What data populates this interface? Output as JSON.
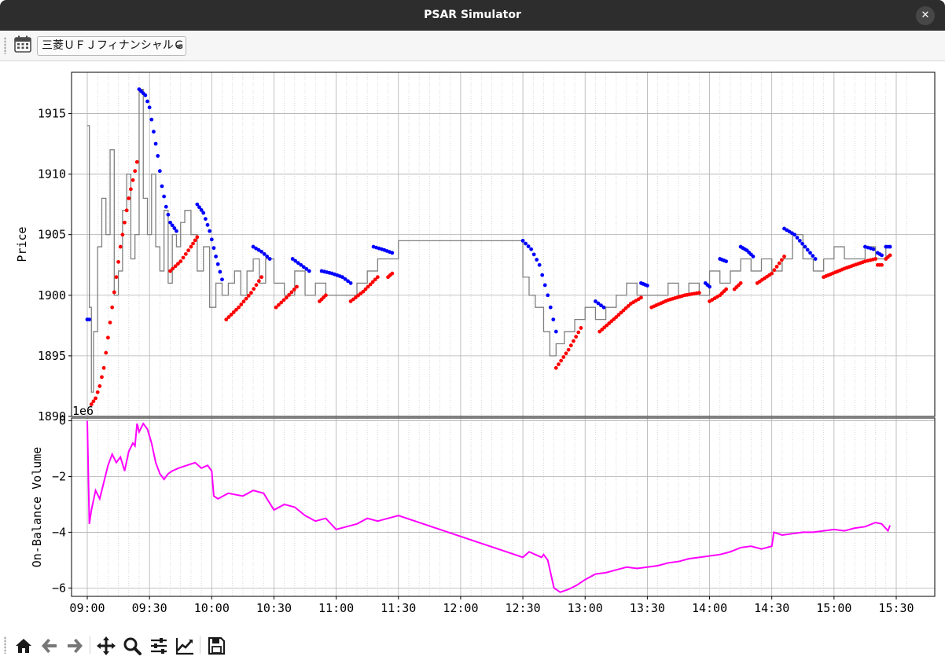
{
  "window": {
    "title": "PSAR Simulator",
    "close_glyph": "✕"
  },
  "toolbar": {
    "calendar_icon": "calendar-icon",
    "symbol_selected": "三菱ＵＦＪフィナンシャルＧ"
  },
  "navigation_toolbar": {
    "icons": [
      "home-icon",
      "back-icon",
      "forward-icon",
      "pan-icon",
      "zoom-icon",
      "configure-subplots-icon",
      "edit-axis-icon",
      "save-icon"
    ]
  },
  "colors": {
    "price_line": "#808080",
    "psar_bull": "#ff0000",
    "psar_bear": "#0000ff",
    "obv_line": "#ff00ff"
  },
  "chart_data": [
    {
      "type": "line",
      "ylabel": "Price",
      "xlabel": "",
      "ylim": [
        1890,
        1918.4
      ],
      "yticks": [
        1890,
        1895,
        1900,
        1905,
        1910,
        1915
      ],
      "xticks": [
        "09:00",
        "09:30",
        "10:00",
        "10:30",
        "11:00",
        "11:30",
        "12:00",
        "12:30",
        "13:00",
        "13:30",
        "14:00",
        "14:30",
        "15:00",
        "15:30"
      ],
      "grid": true,
      "series": [
        {
          "kind": "price",
          "x": [
            "09:00",
            "09:01",
            "09:02",
            "09:03",
            "09:05",
            "09:07",
            "09:09",
            "09:11",
            "09:13",
            "09:15",
            "09:17",
            "09:19",
            "09:21",
            "09:23",
            "09:25",
            "09:27",
            "09:29",
            "09:31",
            "09:33",
            "09:35",
            "09:37",
            "09:39",
            "09:41",
            "09:43",
            "09:45",
            "09:47",
            "09:50",
            "09:53",
            "09:56",
            "09:59",
            "10:02",
            "10:05",
            "10:08",
            "10:11",
            "10:14",
            "10:17",
            "10:20",
            "10:23",
            "10:26",
            "10:30",
            "10:35",
            "10:40",
            "10:45",
            "10:50",
            "10:55",
            "11:00",
            "11:05",
            "11:10",
            "11:15",
            "11:20",
            "11:25",
            "11:30",
            "12:30",
            "12:33",
            "12:36",
            "12:40",
            "12:43",
            "12:46",
            "12:50",
            "12:55",
            "13:00",
            "13:05",
            "13:10",
            "13:15",
            "13:20",
            "13:25",
            "13:30",
            "13:35",
            "13:40",
            "13:45",
            "13:50",
            "13:55",
            "14:00",
            "14:05",
            "14:10",
            "14:15",
            "14:20",
            "14:25",
            "14:30",
            "14:35",
            "14:40",
            "14:45",
            "14:50",
            "14:55",
            "15:00",
            "15:05",
            "15:10",
            "15:15",
            "15:20",
            "15:25"
          ],
          "y": [
            1914,
            1899,
            1892,
            1897,
            1904,
            1908,
            1905,
            1912,
            1900,
            1902,
            1907,
            1910,
            1903,
            1905,
            1917,
            1908,
            1905,
            1910,
            1904,
            1902,
            1907,
            1901,
            1905,
            1904,
            1906,
            1907,
            1905,
            1902,
            1904,
            1899,
            1901,
            1900,
            1901,
            1902,
            1900,
            1902,
            1903,
            1901,
            1903,
            1901,
            1900,
            1902,
            1900,
            1901,
            1900,
            1900,
            1900,
            1901,
            1902,
            1903,
            1903,
            1904.5,
            1901.5,
            1900,
            1899,
            1897,
            1895,
            1896,
            1897,
            1898,
            1899,
            1898,
            1899,
            1900,
            1901,
            1900,
            1900,
            1900,
            1901,
            1900,
            1901,
            1900,
            1902,
            1901,
            1902,
            1903,
            1902,
            1903,
            1902,
            1903,
            1905,
            1903,
            1902,
            1903,
            1904,
            1903,
            1903,
            1904,
            1903,
            1904
          ]
        },
        {
          "kind": "psar_long",
          "color": "red",
          "segments": [
            {
              "x": [
                "09:02",
                "09:04",
                "09:06",
                "09:08",
                "09:10",
                "09:12",
                "09:14",
                "09:16",
                "09:18",
                "09:20",
                "09:22",
                "09:24"
              ],
              "y": [
                1891,
                1891.5,
                1892.5,
                1894,
                1896.5,
                1899,
                1901.5,
                1904,
                1906,
                1908,
                1909.5,
                1911
              ]
            },
            {
              "x": [
                "09:40",
                "09:45",
                "09:50",
                "09:53"
              ],
              "y": [
                1902,
                1902.8,
                1904,
                1904.8
              ]
            },
            {
              "x": [
                "10:07",
                "10:13",
                "10:19",
                "10:24"
              ],
              "y": [
                1898,
                1899,
                1900.2,
                1901.5
              ]
            },
            {
              "x": [
                "10:31",
                "10:36",
                "10:41"
              ],
              "y": [
                1899,
                1899.8,
                1900.7
              ]
            },
            {
              "x": [
                "10:52",
                "10:55"
              ],
              "y": [
                1899.5,
                1900
              ]
            },
            {
              "x": [
                "11:07",
                "11:13",
                "11:20"
              ],
              "y": [
                1899.5,
                1900.3,
                1901.5
              ]
            },
            {
              "x": [
                "11:25",
                "11:27"
              ],
              "y": [
                1901.5,
                1901.8
              ]
            },
            {
              "x": [
                "12:46",
                "12:52",
                "12:58"
              ],
              "y": [
                1894,
                1895.5,
                1897.3
              ]
            },
            {
              "x": [
                "13:07",
                "13:15",
                "13:22",
                "13:27"
              ],
              "y": [
                1897,
                1898.2,
                1899.3,
                1899.8
              ]
            },
            {
              "x": [
                "13:32",
                "13:40",
                "13:48",
                "13:55"
              ],
              "y": [
                1899,
                1899.6,
                1900,
                1900.2
              ]
            },
            {
              "x": [
                "14:00",
                "14:05",
                "14:08"
              ],
              "y": [
                1899.5,
                1900,
                1900.5
              ]
            },
            {
              "x": [
                "14:12",
                "14:15"
              ],
              "y": [
                1900.5,
                1901
              ]
            },
            {
              "x": [
                "14:23",
                "14:30",
                "14:36"
              ],
              "y": [
                1901,
                1901.8,
                1903.2
              ]
            },
            {
              "x": [
                "14:55",
                "15:05",
                "15:15",
                "15:20"
              ],
              "y": [
                1901.5,
                1902.2,
                1902.8,
                1903
              ]
            },
            {
              "x": [
                "15:21",
                "15:23"
              ],
              "y": [
                1902.5,
                1902.5
              ]
            },
            {
              "x": [
                "15:25",
                "15:27"
              ],
              "y": [
                1903,
                1903.3
              ]
            }
          ]
        },
        {
          "kind": "psar_short",
          "color": "blue",
          "segments": [
            {
              "x": [
                "09:00",
                "09:01"
              ],
              "y": [
                1898,
                1898
              ]
            },
            {
              "x": [
                "09:25",
                "09:28",
                "09:30",
                "09:32",
                "09:34",
                "09:36",
                "09:38",
                "09:40",
                "09:43"
              ],
              "y": [
                1917,
                1916.5,
                1915.5,
                1913.5,
                1911.5,
                1909,
                1907.3,
                1906,
                1905.3
              ]
            },
            {
              "x": [
                "09:53",
                "09:56",
                "09:59",
                "10:02",
                "10:05"
              ],
              "y": [
                1907.5,
                1906.8,
                1905.3,
                1903.2,
                1901.3
              ]
            },
            {
              "x": [
                "10:20",
                "10:24",
                "10:28"
              ],
              "y": [
                1904,
                1903.6,
                1903
              ]
            },
            {
              "x": [
                "10:39",
                "10:43",
                "10:47"
              ],
              "y": [
                1903,
                1902.5,
                1902
              ]
            },
            {
              "x": [
                "10:53",
                "10:58",
                "11:03",
                "11:07"
              ],
              "y": [
                1902,
                1901.8,
                1901.5,
                1901
              ]
            },
            {
              "x": [
                "11:18",
                "11:22",
                "11:27"
              ],
              "y": [
                1904,
                1903.8,
                1903.5
              ]
            },
            {
              "x": [
                "12:30",
                "12:34",
                "12:38",
                "12:42",
                "12:46"
              ],
              "y": [
                1904.5,
                1903.8,
                1902.5,
                1900,
                1897
              ]
            },
            {
              "x": [
                "13:05",
                "13:09"
              ],
              "y": [
                1899.5,
                1899
              ]
            },
            {
              "x": [
                "13:27",
                "13:30"
              ],
              "y": [
                1901,
                1900.8
              ]
            },
            {
              "x": [
                "13:58",
                "14:00"
              ],
              "y": [
                1901,
                1900.7
              ]
            },
            {
              "x": [
                "14:05",
                "14:08"
              ],
              "y": [
                1903,
                1902.8
              ]
            },
            {
              "x": [
                "14:15",
                "14:18",
                "14:21"
              ],
              "y": [
                1904,
                1903.7,
                1903.2
              ]
            },
            {
              "x": [
                "14:36",
                "14:41",
                "14:46",
                "14:51"
              ],
              "y": [
                1905.5,
                1905,
                1904,
                1903
              ]
            },
            {
              "x": [
                "15:15",
                "15:19"
              ],
              "y": [
                1904,
                1903.8
              ]
            },
            {
              "x": [
                "15:21",
                "15:23"
              ],
              "y": [
                1903.5,
                1903.3
              ]
            },
            {
              "x": [
                "15:25",
                "15:27"
              ],
              "y": [
                1904,
                1904
              ]
            }
          ]
        }
      ]
    },
    {
      "type": "line",
      "ylabel": "On-Balance Volume",
      "offset_label": "1e6",
      "ylim": [
        -6.3,
        0.1
      ],
      "yticks": [
        -6,
        -4,
        -2,
        0
      ],
      "xticks": [
        "09:00",
        "09:30",
        "10:00",
        "10:30",
        "11:00",
        "11:30",
        "12:00",
        "12:30",
        "13:00",
        "13:30",
        "14:00",
        "14:30",
        "15:00",
        "15:30"
      ],
      "grid": true,
      "series": [
        {
          "kind": "obv",
          "x": [
            "09:00",
            "09:01",
            "09:02",
            "09:04",
            "09:06",
            "09:08",
            "09:10",
            "09:12",
            "09:14",
            "09:16",
            "09:18",
            "09:20",
            "09:22",
            "09:23",
            "09:24",
            "09:25",
            "09:27",
            "09:29",
            "09:31",
            "09:33",
            "09:35",
            "09:37",
            "09:39",
            "09:41",
            "09:44",
            "09:48",
            "09:52",
            "09:55",
            "09:58",
            "10:00",
            "10:01",
            "10:03",
            "10:08",
            "10:15",
            "10:20",
            "10:25",
            "10:30",
            "10:35",
            "10:40",
            "10:45",
            "10:50",
            "10:55",
            "11:00",
            "11:05",
            "11:10",
            "11:15",
            "11:20",
            "11:25",
            "11:30",
            "12:30",
            "12:33",
            "12:36",
            "12:39",
            "12:40",
            "12:42",
            "12:45",
            "12:48",
            "12:52",
            "12:56",
            "13:00",
            "13:05",
            "13:10",
            "13:15",
            "13:20",
            "13:25",
            "13:30",
            "13:35",
            "13:40",
            "13:45",
            "13:50",
            "13:55",
            "14:00",
            "14:05",
            "14:10",
            "14:15",
            "14:20",
            "14:25",
            "14:30",
            "14:31",
            "14:35",
            "14:40",
            "14:45",
            "14:50",
            "14:55",
            "15:00",
            "15:05",
            "15:10",
            "15:15",
            "15:20",
            "15:23",
            "15:26",
            "15:27"
          ],
          "y": [
            0,
            -3.7,
            -3.2,
            -2.5,
            -2.8,
            -2.2,
            -1.6,
            -1.2,
            -1.5,
            -1.3,
            -1.8,
            -1.1,
            -0.8,
            -0.9,
            -0.1,
            -0.4,
            -0.1,
            -0.3,
            -0.8,
            -1.5,
            -1.9,
            -2.1,
            -1.9,
            -1.8,
            -1.7,
            -1.6,
            -1.5,
            -1.7,
            -1.6,
            -1.8,
            -2.7,
            -2.8,
            -2.6,
            -2.7,
            -2.5,
            -2.6,
            -3.2,
            -3.0,
            -3.1,
            -3.4,
            -3.6,
            -3.5,
            -3.9,
            -3.8,
            -3.7,
            -3.5,
            -3.6,
            -3.5,
            -3.4,
            -4.9,
            -4.7,
            -4.8,
            -4.9,
            -4.8,
            -5.0,
            -6.0,
            -6.15,
            -6.05,
            -5.9,
            -5.7,
            -5.5,
            -5.45,
            -5.35,
            -5.25,
            -5.3,
            -5.25,
            -5.2,
            -5.1,
            -5.05,
            -4.95,
            -4.9,
            -4.85,
            -4.8,
            -4.7,
            -4.55,
            -4.5,
            -4.6,
            -4.5,
            -4.0,
            -4.1,
            -4.05,
            -4.0,
            -4.0,
            -3.95,
            -3.9,
            -3.95,
            -3.85,
            -3.8,
            -3.65,
            -3.7,
            -3.95,
            -3.75
          ]
        }
      ]
    }
  ]
}
